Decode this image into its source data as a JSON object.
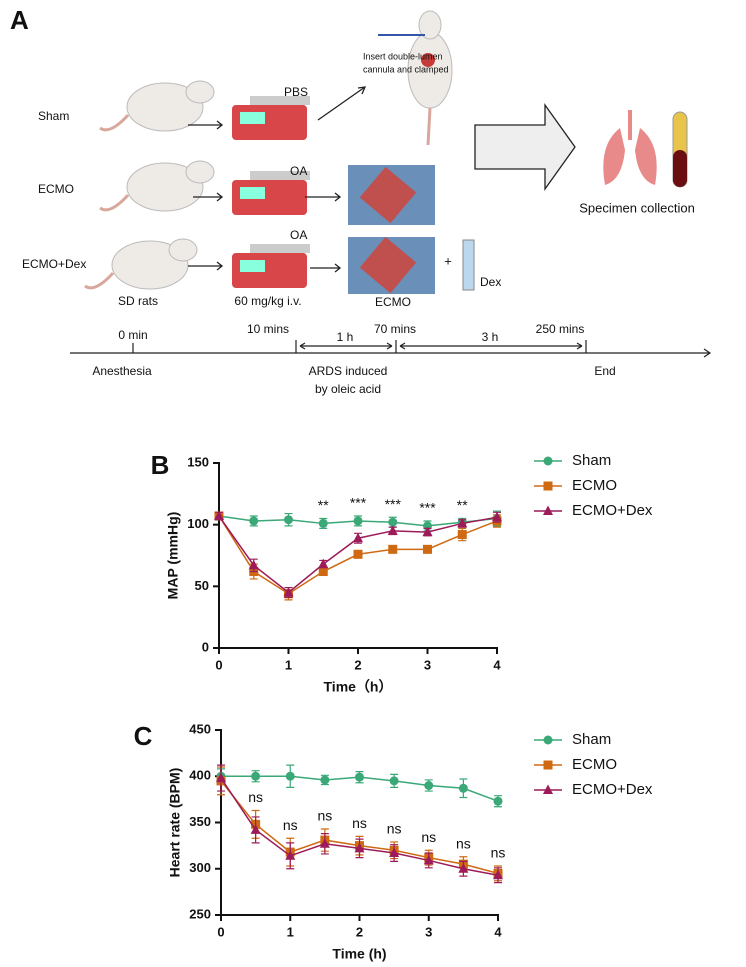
{
  "panel_a": {
    "label": "A",
    "groups": [
      "Sham",
      "ECMO",
      "ECMO+Dex"
    ],
    "pump_labels": [
      "PBS",
      "OA",
      "OA"
    ],
    "cannula_note": [
      "Insert  double-lumen",
      "cannula and clamped"
    ],
    "specimen": "Specimen collection",
    "rats_caption": "SD rats",
    "dose_caption": "60 mg/kg i.v.",
    "ecmo_caption": "ECMO",
    "plus": "+",
    "dex": "Dex",
    "timeline": {
      "times": [
        "0 min",
        "10 mins",
        "70 mins",
        "250 mins"
      ],
      "intervals": [
        "1 h",
        "3 h"
      ],
      "phases": [
        "Anesthesia",
        "ARDS induced",
        "by oleic acid",
        "End"
      ]
    }
  },
  "chart_data": [
    {
      "type": "line",
      "panel": "B",
      "x_label": "Time（h）",
      "y_label": "MAP (mmHg)",
      "x": [
        0,
        0.5,
        1,
        1.5,
        2,
        2.5,
        3,
        3.5,
        4
      ],
      "xlim": [
        0,
        4
      ],
      "xticks": [
        0,
        1,
        2,
        3,
        4
      ],
      "ylim": [
        0,
        150
      ],
      "yticks": [
        0,
        50,
        100,
        150
      ],
      "series": [
        {
          "name": "Sham",
          "color": "#3aa877",
          "marker": "circle",
          "values": [
            107,
            103,
            104,
            101,
            103,
            102,
            99,
            102,
            105
          ],
          "errors": [
            3,
            4,
            5,
            4,
            4,
            4,
            4,
            3,
            6
          ]
        },
        {
          "name": "ECMO",
          "color": "#cf6a12",
          "marker": "square",
          "values": [
            107,
            62,
            44,
            62,
            76,
            80,
            80,
            92,
            103
          ],
          "errors": [
            3,
            6,
            5,
            3,
            3,
            2,
            3,
            5,
            5
          ]
        },
        {
          "name": "ECMO+Dex",
          "color": "#9c1b58",
          "marker": "triangle",
          "values": [
            107,
            67,
            45,
            68,
            89,
            95,
            94,
            101,
            106
          ],
          "errors": [
            3,
            5,
            4,
            3,
            4,
            3,
            3,
            3,
            4
          ]
        }
      ],
      "annotations": [
        {
          "x": 1.5,
          "label": "**"
        },
        {
          "x": 2,
          "label": "***"
        },
        {
          "x": 2.5,
          "label": "***"
        },
        {
          "x": 3,
          "label": "***"
        },
        {
          "x": 3.5,
          "label": "**"
        }
      ]
    },
    {
      "type": "line",
      "panel": "C",
      "x_label": "Time (h)",
      "y_label": "Heart rate (BPM)",
      "x": [
        0,
        0.5,
        1,
        1.5,
        2,
        2.5,
        3,
        3.5,
        4
      ],
      "xlim": [
        0,
        4
      ],
      "xticks": [
        0,
        1,
        2,
        3,
        4
      ],
      "ylim": [
        250,
        450
      ],
      "yticks": [
        250,
        300,
        350,
        400,
        450
      ],
      "series": [
        {
          "name": "Sham",
          "color": "#3aa877",
          "marker": "circle",
          "values": [
            400,
            400,
            400,
            396,
            399,
            395,
            390,
            387,
            373
          ],
          "errors": [
            8,
            6,
            12,
            5,
            6,
            7,
            6,
            10,
            6
          ]
        },
        {
          "name": "ECMO",
          "color": "#cf6a12",
          "marker": "square",
          "values": [
            395,
            348,
            318,
            331,
            325,
            320,
            312,
            305,
            295
          ],
          "errors": [
            15,
            15,
            15,
            12,
            10,
            9,
            8,
            8,
            8
          ]
        },
        {
          "name": "ECMO+Dex",
          "color": "#9c1b58",
          "marker": "triangle",
          "values": [
            398,
            342,
            314,
            327,
            322,
            317,
            309,
            300,
            293
          ],
          "errors": [
            14,
            14,
            14,
            11,
            10,
            9,
            8,
            8,
            8
          ]
        }
      ],
      "annotations": [
        {
          "x": 0.5,
          "label": "ns"
        },
        {
          "x": 1,
          "label": "ns"
        },
        {
          "x": 1.5,
          "label": "ns"
        },
        {
          "x": 2,
          "label": "ns"
        },
        {
          "x": 2.5,
          "label": "ns"
        },
        {
          "x": 3,
          "label": "ns"
        },
        {
          "x": 3.5,
          "label": "ns"
        },
        {
          "x": 4,
          "label": "ns"
        }
      ]
    }
  ]
}
